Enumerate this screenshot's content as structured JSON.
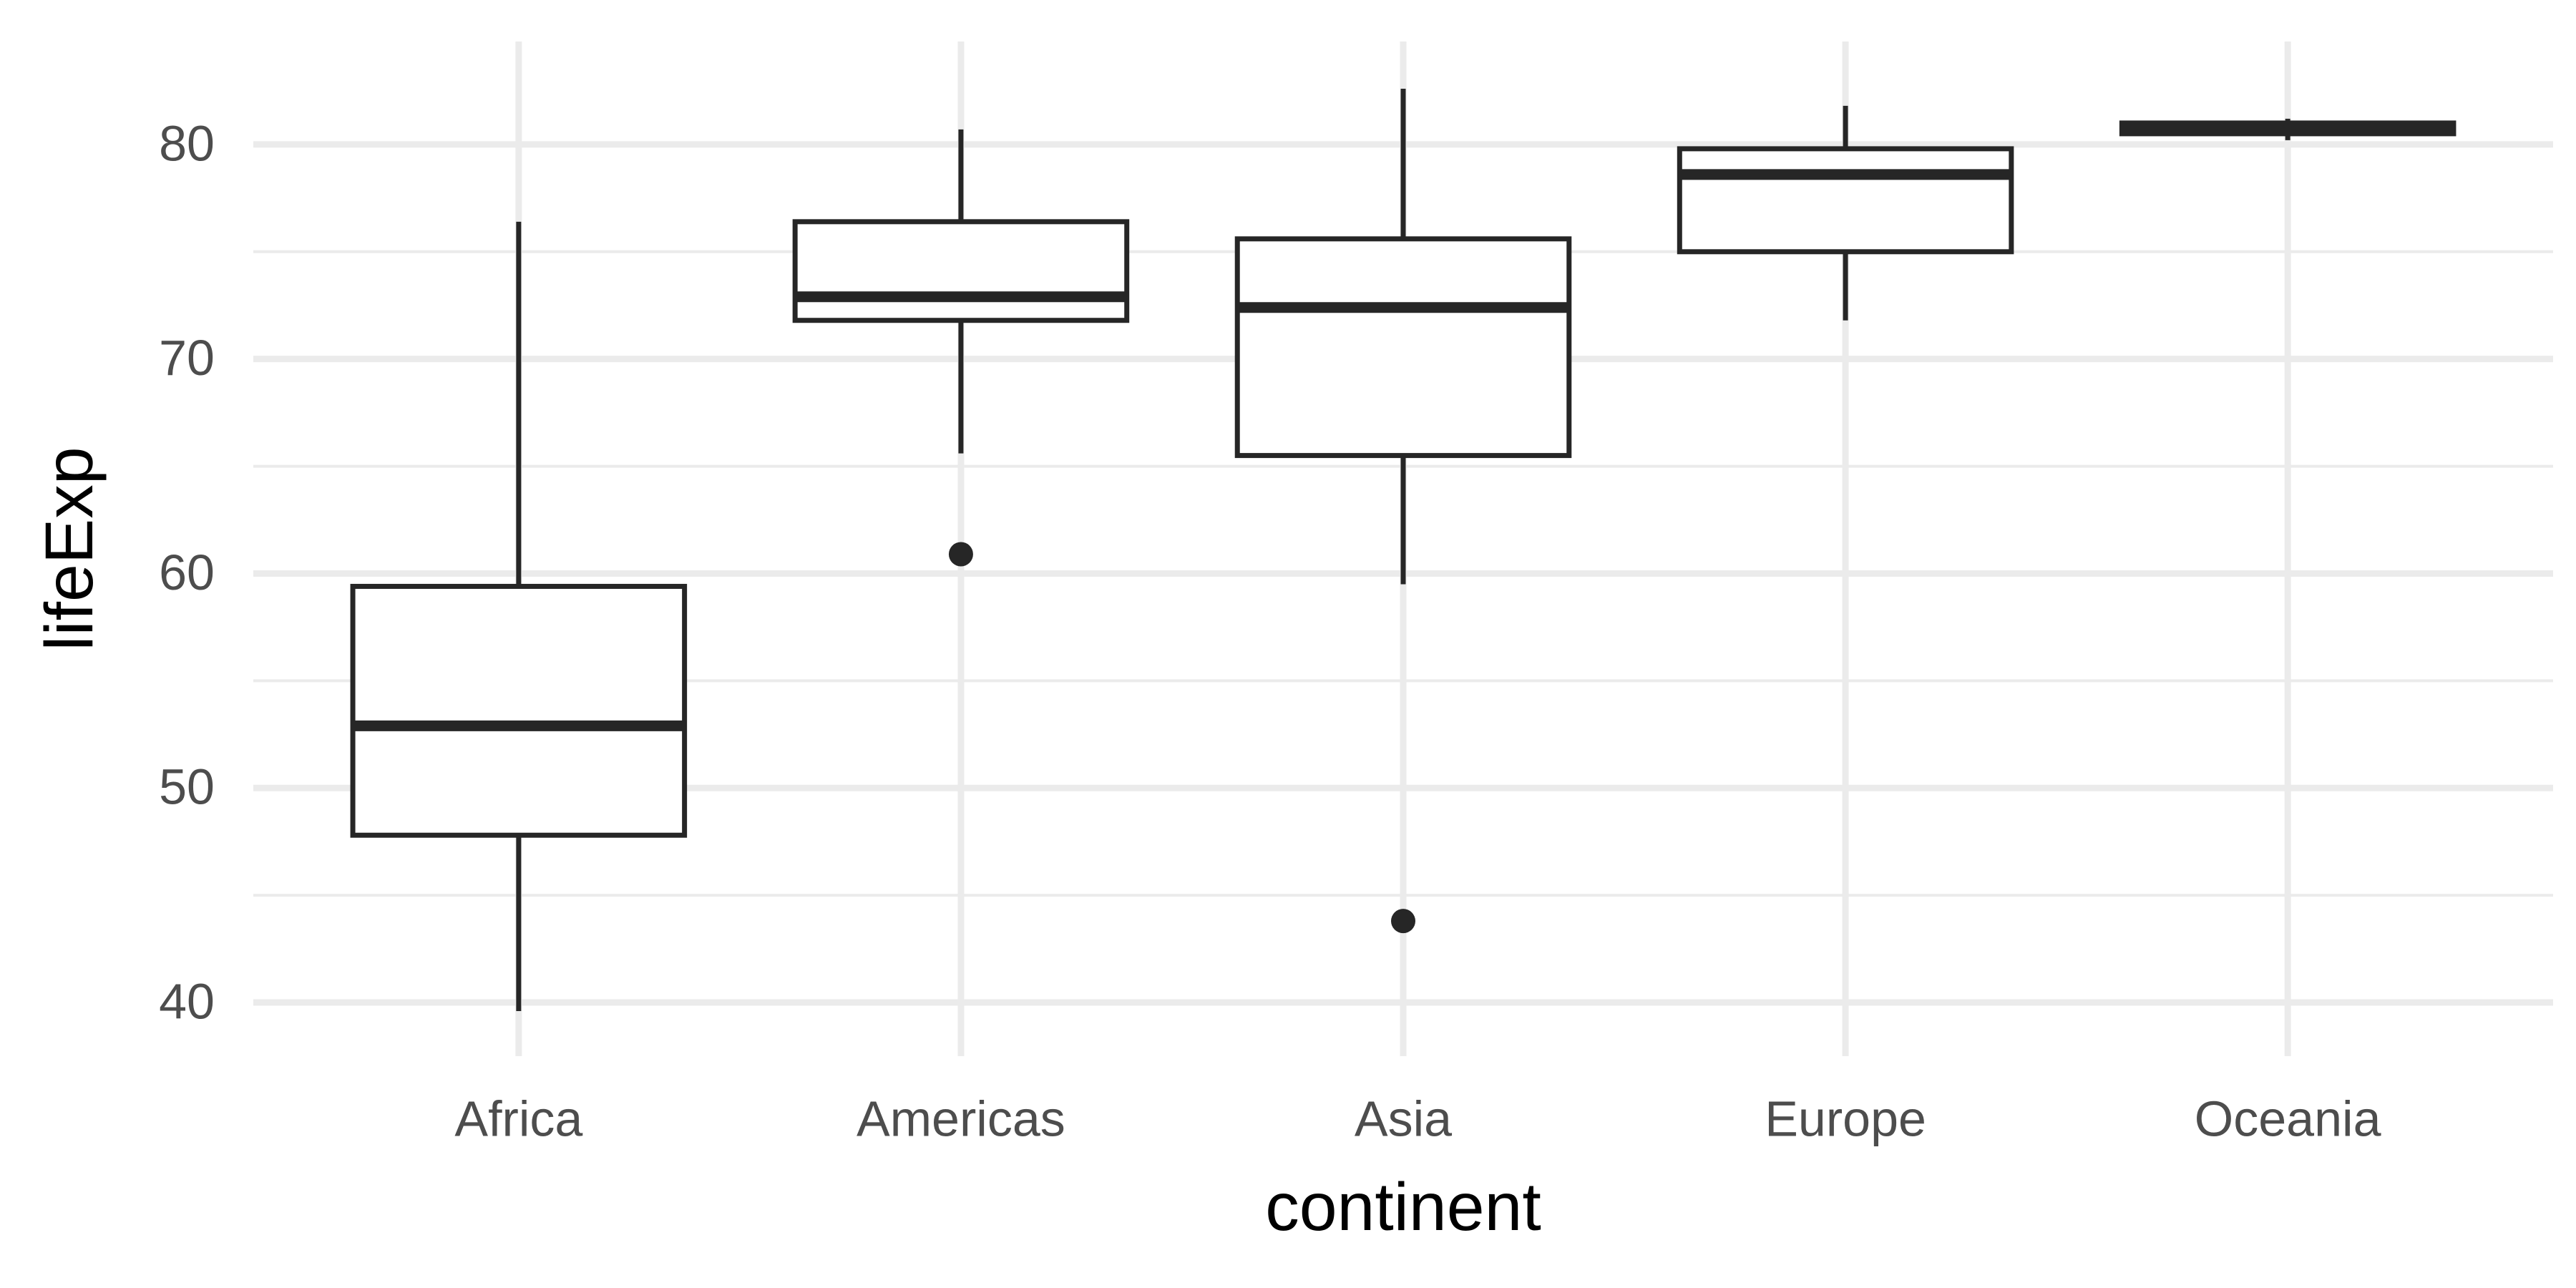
{
  "chart_data": {
    "type": "box",
    "x_label": "continent",
    "y_label": "lifeExp",
    "categories": [
      "Africa",
      "Americas",
      "Asia",
      "Europe",
      "Oceania"
    ],
    "boxes": {
      "min": [
        39.6,
        65.6,
        59.5,
        71.8,
        80.2
      ],
      "q1": [
        47.8,
        71.8,
        65.5,
        75.0,
        80.5
      ],
      "median": [
        52.9,
        72.9,
        72.4,
        78.6,
        80.7
      ],
      "q3": [
        59.4,
        76.4,
        75.6,
        79.8,
        81.0
      ],
      "max": [
        76.4,
        80.7,
        82.6,
        81.8,
        81.2
      ]
    },
    "outliers": [
      [],
      [
        60.9
      ],
      [
        43.8
      ],
      [],
      []
    ],
    "color": "#262626",
    "ylim": [
      37.5,
      84.8
    ],
    "yticks": [
      40,
      50,
      60,
      70,
      80
    ],
    "grid": true
  }
}
